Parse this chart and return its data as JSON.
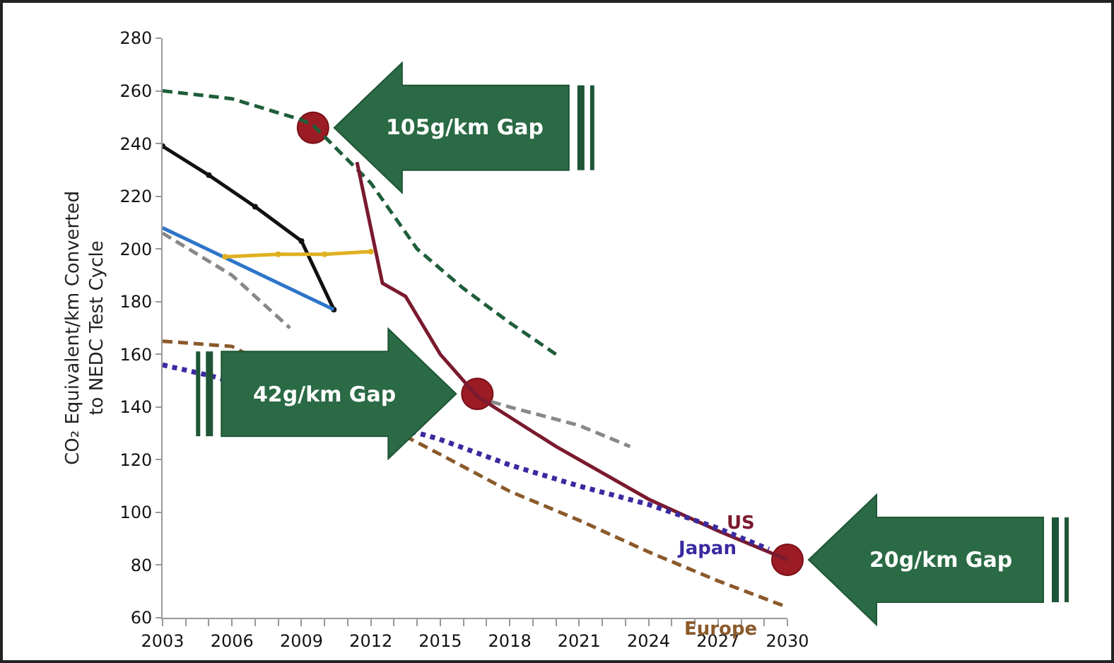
{
  "chart_data": {
    "type": "line",
    "ylabel": "CO₂ Equivalent/km Converted\nto NEDC Test Cycle",
    "xlim": [
      2003,
      2030
    ],
    "xticks": [
      2003,
      2006,
      2009,
      2012,
      2015,
      2018,
      2021,
      2024,
      2027,
      2030
    ],
    "ylim": [
      60,
      280
    ],
    "yticks": [
      60,
      80,
      100,
      120,
      140,
      160,
      180,
      200,
      220,
      240,
      260,
      280
    ],
    "grid": false,
    "legend": false,
    "series": [
      {
        "type": "scatter",
        "color": "#9b1c24",
        "marker": "circle",
        "x": [
          2009.5,
          2016.6,
          2030
        ],
        "values": [
          246,
          145,
          82
        ]
      },
      {
        "color": "#1e5e3a",
        "line_style": "dashed",
        "x": [
          2003,
          2006,
          2009,
          2009.5,
          2012,
          2014,
          2016,
          2018,
          2020
        ],
        "values": [
          260,
          257,
          249,
          247,
          225,
          200,
          185,
          172,
          160
        ]
      },
      {
        "color": "#111111",
        "marker": "circle",
        "x": [
          2003,
          2005,
          2007,
          2009,
          2010.4
        ],
        "values": [
          239,
          228,
          216,
          203,
          177
        ]
      },
      {
        "color": "#2e75c9",
        "x": [
          2003,
          2010.4
        ],
        "values": [
          208,
          177
        ]
      },
      {
        "color": "#e0b020",
        "marker": "circle",
        "x": [
          2005.7,
          2008,
          2010,
          2012
        ],
        "values": [
          197,
          198,
          198,
          199
        ]
      },
      {
        "color": "#888888",
        "line_style": "dashed",
        "x": [
          2003,
          2006,
          2008.5,
          2012,
          2017.2,
          2018,
          2021,
          2023.2
        ],
        "values": [
          206,
          190,
          170,
          null,
          142,
          140,
          133,
          125
        ]
      },
      {
        "name": "US",
        "color": "#7a1a2e",
        "x": [
          2011.4,
          2012.5,
          2013.5,
          2015,
          2016.6,
          2020,
          2024,
          2027,
          2030
        ],
        "values": [
          233,
          187,
          182,
          160,
          144,
          125,
          105,
          93,
          82
        ]
      },
      {
        "name": "Japan",
        "color": "#3a2aa0",
        "line_style": "dotted",
        "x": [
          2003,
          2005,
          2014.9,
          2018,
          2021,
          2024,
          2027,
          2029.2
        ],
        "values": [
          156,
          152,
          128,
          118,
          110,
          103,
          94,
          86
        ]
      },
      {
        "name": "Europe",
        "color": "#8b5a2b",
        "line_style": "dashed",
        "x": [
          2003,
          2006,
          2015,
          2018,
          2021,
          2024,
          2027,
          2030
        ],
        "values": [
          165,
          163,
          122,
          108,
          97,
          85,
          74,
          64
        ]
      }
    ],
    "annotations": [
      "105g/km Gap",
      "42g/km Gap",
      "20g/km Gap"
    ]
  }
}
